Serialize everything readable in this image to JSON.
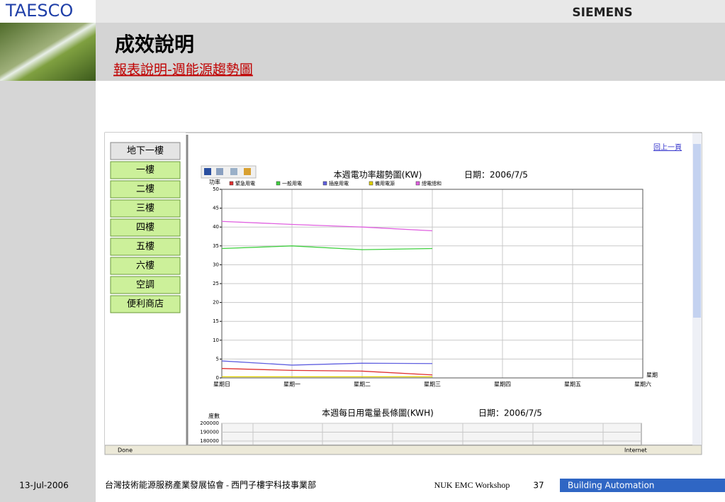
{
  "header": {
    "brand": "TAESCO",
    "logo": "SIEMENS",
    "title": "成效說明",
    "subtitle": "報表說明-週能源趨勢圖"
  },
  "nav": [
    "地下一樓",
    "一樓",
    "二樓",
    "三樓",
    "四樓",
    "五樓",
    "六樓",
    "空調",
    "便利商店"
  ],
  "back_link": "回上一頁",
  "chart_data": [
    {
      "type": "line",
      "title": "本週電功率趨勢圖(KW)",
      "date": "日期：2006/7/5",
      "y_label": "功率",
      "x_label": "星期",
      "categories": [
        "星期日",
        "星期一",
        "星期二",
        "星期三",
        "星期四",
        "星期五",
        "星期六"
      ],
      "series": [
        {
          "name": "緊急用電",
          "color": "#e03030",
          "values": [
            2.5,
            2,
            1.8,
            0.8,
            null,
            null,
            null
          ]
        },
        {
          "name": "一般用電",
          "color": "#40d040",
          "values": [
            34.3,
            35,
            34,
            34.3,
            null,
            null,
            null
          ]
        },
        {
          "name": "插座用電",
          "color": "#6060e0",
          "values": [
            4.5,
            3.4,
            3.9,
            3.8,
            null,
            null,
            null
          ]
        },
        {
          "name": "備用電源",
          "color": "#e0d000",
          "values": [
            0.3,
            0.3,
            0.3,
            0.3,
            null,
            null,
            null
          ]
        },
        {
          "name": "總電總和",
          "color": "#e060e0",
          "values": [
            41.5,
            40.7,
            40,
            39,
            null,
            null,
            null
          ]
        }
      ],
      "ylim": [
        0,
        50
      ],
      "yticks": [
        0,
        5,
        10,
        15,
        20,
        25,
        30,
        35,
        40,
        45,
        50
      ],
      "grid": true
    },
    {
      "type": "bar",
      "title": "本週每日用電量長條圖(KWH)",
      "date": "日期：2006/7/5",
      "y_label": "度數",
      "ylim": [
        180000,
        200000
      ],
      "yticks": [
        180000,
        190000,
        200000
      ],
      "grid": true
    }
  ],
  "status": {
    "left": "Done",
    "right": "Internet"
  },
  "footer": {
    "date": "13-Jul-2006",
    "org": "台灣技術能源服務產業發展協會 - 西門子樓宇科技事業部",
    "event": "NUK EMC Workshop",
    "page": "37",
    "division": "Building Automation"
  }
}
